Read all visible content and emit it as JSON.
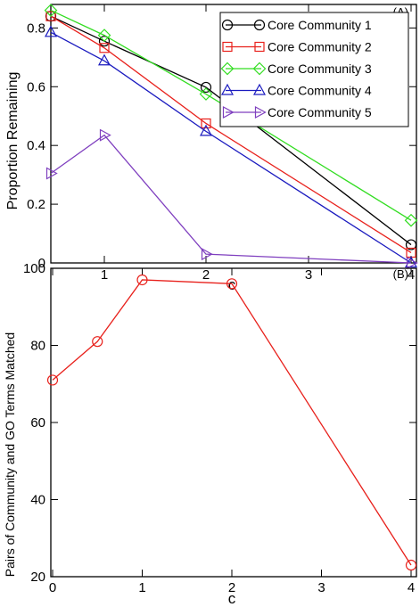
{
  "chart_data": [
    {
      "type": "line",
      "panel_label": "(A)",
      "xlabel": "c",
      "ylabel": "Proportion Remaining",
      "xlim": [
        0.5,
        4
      ],
      "ylim": [
        0,
        0.88
      ],
      "x_ticks": [
        1,
        2,
        3,
        4
      ],
      "y_ticks": [
        0,
        0.2,
        0.4,
        0.6,
        0.8
      ],
      "x_tick_labels": [
        "1",
        "2",
        "3",
        "4"
      ],
      "y_tick_labels": [
        "0",
        "0.2",
        "0.4",
        "0.6",
        "0.8"
      ],
      "grid": false,
      "legend_position": "top-right",
      "series": [
        {
          "name": "Core Community 1",
          "color": "#000000",
          "marker": "circle",
          "x": [
            0.5,
            1,
            2,
            4
          ],
          "y": [
            0.84,
            0.755,
            0.598,
            0.062
          ]
        },
        {
          "name": "Core Community 2",
          "color": "#e8211c",
          "marker": "square",
          "x": [
            0.5,
            1,
            2,
            4
          ],
          "y": [
            0.84,
            0.732,
            0.475,
            0.035
          ]
        },
        {
          "name": "Core Community 3",
          "color": "#33dd22",
          "marker": "diamond",
          "x": [
            0.5,
            1,
            2,
            4
          ],
          "y": [
            0.86,
            0.775,
            0.575,
            0.145
          ]
        },
        {
          "name": "Core Community 4",
          "color": "#1a1abf",
          "marker": "triangle-up",
          "x": [
            0.5,
            1,
            2,
            4
          ],
          "y": [
            0.785,
            0.688,
            0.448,
            0.0
          ]
        },
        {
          "name": "Core Community 5",
          "color": "#7f3fbf",
          "marker": "triangle-right",
          "x": [
            0.5,
            1,
            2,
            4
          ],
          "y": [
            0.305,
            0.435,
            0.03,
            0.0
          ]
        }
      ]
    },
    {
      "type": "line",
      "panel_label": "(B)",
      "xlabel": "c",
      "ylabel": "Pairs of Community and GO Terms Matched",
      "xlim": [
        0,
        4
      ],
      "ylim": [
        20,
        100
      ],
      "x_ticks": [
        0,
        1,
        2,
        3,
        4
      ],
      "y_ticks": [
        20,
        40,
        60,
        80,
        100
      ],
      "x_tick_labels": [
        "0",
        "1",
        "2",
        "3",
        "4"
      ],
      "y_tick_labels": [
        "20",
        "40",
        "60",
        "80",
        "100"
      ],
      "grid": false,
      "series": [
        {
          "color": "#e8211c",
          "marker": "circle",
          "x": [
            0,
            0.5,
            1,
            2,
            4
          ],
          "y": [
            71,
            81,
            97,
            96,
            23
          ]
        }
      ]
    }
  ]
}
